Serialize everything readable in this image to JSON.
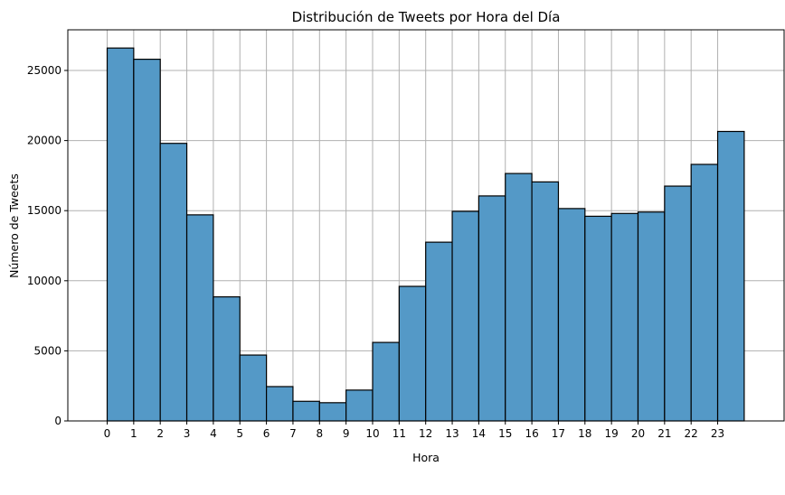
{
  "chart_data": {
    "type": "bar",
    "title": "Distribución de Tweets por Hora del Día",
    "xlabel": "Hora",
    "ylabel": "Número de Tweets",
    "categories": [
      "0",
      "1",
      "2",
      "3",
      "4",
      "5",
      "6",
      "7",
      "8",
      "9",
      "10",
      "11",
      "12",
      "13",
      "14",
      "15",
      "16",
      "17",
      "18",
      "19",
      "20",
      "21",
      "22",
      "23"
    ],
    "values": [
      26600,
      25800,
      19800,
      14700,
      8850,
      4700,
      2450,
      1400,
      1300,
      2200,
      5600,
      9600,
      12750,
      14950,
      16050,
      17650,
      17050,
      15150,
      14600,
      14800,
      14900,
      16750,
      18300,
      20650
    ],
    "ylim": [
      0,
      27900
    ],
    "yticks": [
      0,
      5000,
      10000,
      15000,
      20000,
      25000
    ],
    "grid": true,
    "colors": {
      "bar": "#5499c7",
      "edge": "#000000",
      "grid": "#b0b0b0"
    }
  }
}
